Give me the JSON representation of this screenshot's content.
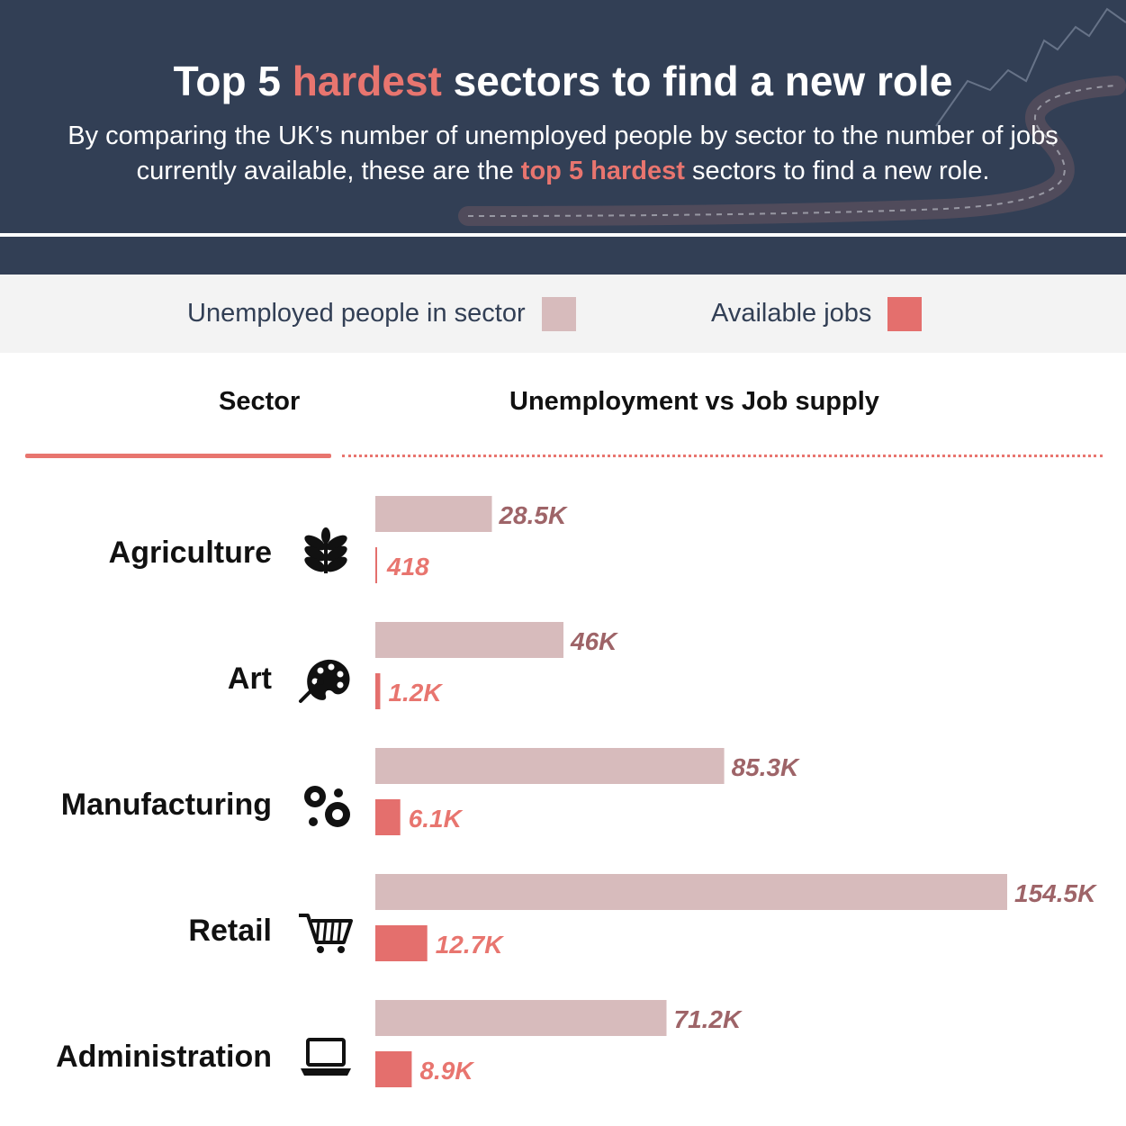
{
  "header": {
    "title_pre": "Top 5 ",
    "title_hl": "hardest",
    "title_post": " sectors to find a new role",
    "subtitle_pre": "By comparing the UK’s number of unemployed people by sector to the number of jobs currently available, these are the ",
    "subtitle_hl": "top 5 hardest",
    "subtitle_post": " sectors to find a new role."
  },
  "legend": {
    "unemployed_label": "Unemployed people in sector",
    "jobs_label": "Available jobs"
  },
  "columns": {
    "sector": "Sector",
    "comparison": "Unemployment vs Job supply"
  },
  "colors": {
    "header_bg": "#323f55",
    "unemployed": "#d7bbbc",
    "jobs": "#e46f6d",
    "unemployed_text": "#9e6468",
    "jobs_text": "#e8756f",
    "accent": "#e8756f"
  },
  "chart_data": {
    "type": "bar",
    "orientation": "horizontal",
    "categories": [
      "Agriculture",
      "Art",
      "Manufacturing",
      "Retail",
      "Administration"
    ],
    "icons": [
      "wheat-icon",
      "palette-icon",
      "gears-icon",
      "shopping-cart-icon",
      "laptop-icon"
    ],
    "series": [
      {
        "name": "Unemployed people in sector",
        "values": [
          28500,
          46000,
          85300,
          154500,
          71200
        ],
        "labels": [
          "28.5K",
          "46K",
          "85.3K",
          "154.5K",
          "71.2K"
        ]
      },
      {
        "name": "Available jobs",
        "values": [
          418,
          1200,
          6100,
          12700,
          8900
        ],
        "labels": [
          "418",
          "1.2K",
          "6.1K",
          "12.7K",
          "8.9K"
        ]
      }
    ],
    "xlim": [
      0,
      154500
    ],
    "grid": false,
    "legend": "top"
  }
}
